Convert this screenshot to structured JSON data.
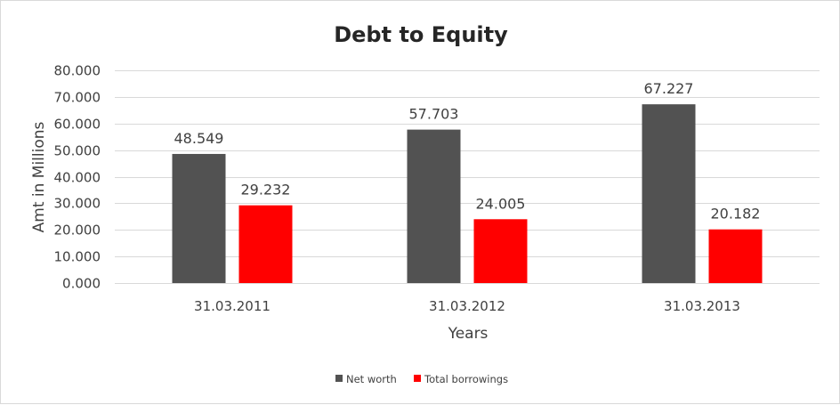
{
  "chart_data": {
    "type": "bar",
    "title": "Debt to Equity",
    "xlabel": "Years",
    "ylabel": "Amt in Millions",
    "categories": [
      "31.03.2011",
      "31.03.2012",
      "31.03.2013"
    ],
    "series": [
      {
        "name": "Net worth",
        "color": "#525252",
        "values": [
          48.549,
          57.703,
          67.227
        ],
        "labels": [
          "48.549",
          "57.703",
          "67.227"
        ]
      },
      {
        "name": "Total borrowings",
        "color": "#ff0000",
        "values": [
          29.232,
          24.005,
          20.182
        ],
        "labels": [
          "29.232",
          "24.005",
          "20.182"
        ]
      }
    ],
    "ylim": [
      0,
      80
    ],
    "yticks": [
      "0.000",
      "10.000",
      "20.000",
      "30.000",
      "40.000",
      "50.000",
      "60.000",
      "70.000",
      "80.000"
    ],
    "grid": true,
    "legend": "bottom"
  }
}
